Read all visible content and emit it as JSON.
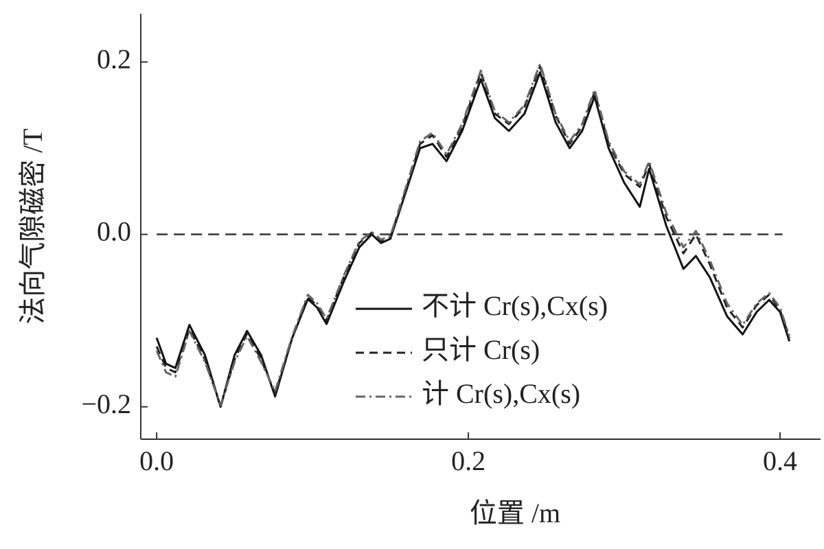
{
  "chart_data": {
    "type": "line",
    "x_label": "位置 /m",
    "y_label": "法向气隙磁密 /T",
    "x": [
      0,
      0.006,
      0.012,
      0.021,
      0.031,
      0.041,
      0.05,
      0.058,
      0.067,
      0.076,
      0.087,
      0.097,
      0.103,
      0.109,
      0.12,
      0.13,
      0.138,
      0.144,
      0.15,
      0.16,
      0.169,
      0.177,
      0.186,
      0.196,
      0.208,
      0.217,
      0.226,
      0.236,
      0.246,
      0.256,
      0.265,
      0.273,
      0.281,
      0.29,
      0.3,
      0.31,
      0.316,
      0.327,
      0.338,
      0.346,
      0.355,
      0.366,
      0.376,
      0.385,
      0.393,
      0.4,
      0.406
    ],
    "series": [
      {
        "name": "不计 Cr(s),Cx(s)",
        "color": "#111111",
        "dash": "solid",
        "values": [
          -0.12,
          -0.15,
          -0.155,
          -0.105,
          -0.14,
          -0.2,
          -0.14,
          -0.112,
          -0.14,
          -0.188,
          -0.12,
          -0.075,
          -0.085,
          -0.104,
          -0.055,
          -0.015,
          0.0,
          -0.01,
          -0.005,
          0.05,
          0.1,
          0.105,
          0.085,
          0.12,
          0.18,
          0.135,
          0.12,
          0.14,
          0.188,
          0.13,
          0.1,
          0.12,
          0.16,
          0.1,
          0.06,
          0.032,
          0.076,
          0.01,
          -0.04,
          -0.025,
          -0.05,
          -0.095,
          -0.116,
          -0.09,
          -0.076,
          -0.09,
          -0.124
        ]
      },
      {
        "name": "只计 Cr(s)",
        "color": "#222222",
        "dash": "dashed",
        "values": [
          -0.13,
          -0.155,
          -0.16,
          -0.11,
          -0.145,
          -0.2,
          -0.145,
          -0.115,
          -0.145,
          -0.185,
          -0.12,
          -0.072,
          -0.083,
          -0.1,
          -0.05,
          -0.01,
          0.002,
          -0.008,
          -0.003,
          0.052,
          0.105,
          0.115,
          0.09,
          0.125,
          0.188,
          0.14,
          0.128,
          0.148,
          0.195,
          0.138,
          0.105,
          0.125,
          0.165,
          0.105,
          0.07,
          0.055,
          0.082,
          0.02,
          -0.022,
          0.0,
          -0.035,
          -0.085,
          -0.108,
          -0.082,
          -0.07,
          -0.088,
          -0.12
        ]
      },
      {
        "name": "计 Cr(s),Cx(s)",
        "color": "#666666",
        "dash": "dashdot",
        "values": [
          -0.135,
          -0.16,
          -0.165,
          -0.112,
          -0.148,
          -0.198,
          -0.148,
          -0.118,
          -0.148,
          -0.182,
          -0.118,
          -0.07,
          -0.08,
          -0.098,
          -0.048,
          -0.008,
          0.003,
          -0.006,
          -0.002,
          0.055,
          0.108,
          0.118,
          0.093,
          0.128,
          0.19,
          0.143,
          0.13,
          0.15,
          0.198,
          0.14,
          0.108,
          0.128,
          0.168,
          0.108,
          0.073,
          0.058,
          0.085,
          0.025,
          -0.015,
          0.004,
          -0.03,
          -0.08,
          -0.105,
          -0.08,
          -0.068,
          -0.085,
          -0.118
        ]
      }
    ],
    "hlines": [
      0
    ],
    "xlim": [
      -0.0102,
      0.426
    ],
    "ylim": [
      -0.2376,
      0.256
    ],
    "xticks": [
      {
        "value": 0,
        "label": "0.0"
      },
      0.2,
      0.4
    ],
    "yticks": [
      {
        "value": -0.2,
        "label": "−0.2"
      },
      {
        "value": 0,
        "label": "0.0"
      },
      0.2
    ],
    "legend": "lower-right"
  }
}
